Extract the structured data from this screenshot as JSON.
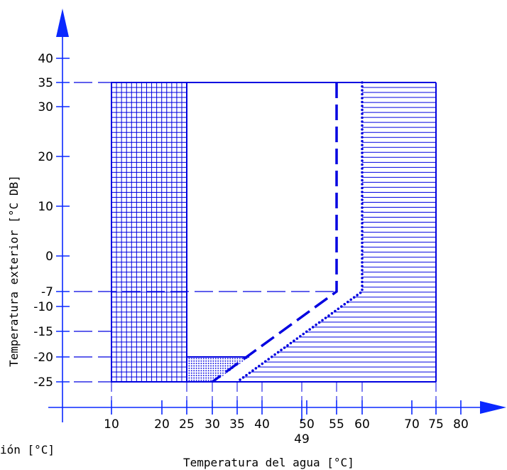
{
  "chart_data": {
    "type": "area",
    "title": "",
    "xlabel": "Temperatura del agua [°C]",
    "ylabel": "Temperatura exterior [°C DB]",
    "cut_off_label": "ión [°C]",
    "x_ticks": [
      {
        "value": 10,
        "label": "10"
      },
      {
        "value": 20,
        "label": "20"
      },
      {
        "value": 25,
        "label": "25"
      },
      {
        "value": 30,
        "label": "30"
      },
      {
        "value": 35,
        "label": "35"
      },
      {
        "value": 40,
        "label": "40"
      },
      {
        "value": 50,
        "label": "50"
      },
      {
        "value": 55,
        "label": "55"
      },
      {
        "value": 60,
        "label": "60"
      },
      {
        "value": 70,
        "label": "70"
      },
      {
        "value": 75,
        "label": "75"
      },
      {
        "value": 80,
        "label": "80"
      }
    ],
    "x_extra_tick": {
      "value": 49,
      "label": "49"
    },
    "y_ticks": [
      {
        "value": 40,
        "label": "40"
      },
      {
        "value": 35,
        "label": "35"
      },
      {
        "value": 30,
        "label": "30"
      },
      {
        "value": 20,
        "label": "20"
      },
      {
        "value": 10,
        "label": "10"
      },
      {
        "value": 0,
        "label": "0"
      },
      {
        "value": -7,
        "label": "-7"
      },
      {
        "value": -10,
        "label": "-10"
      },
      {
        "value": -15,
        "label": "-15"
      },
      {
        "value": -20,
        "label": "-20"
      },
      {
        "value": -25,
        "label": "-25"
      }
    ],
    "regions": [
      {
        "id": "grid-region",
        "pattern": "grid",
        "x": [
          10,
          25
        ],
        "y": [
          -25,
          35
        ]
      },
      {
        "id": "horizontal-region",
        "pattern": "horizontal",
        "polygon": [
          [
            60,
            35
          ],
          [
            75,
            35
          ],
          [
            75,
            -25
          ],
          [
            35,
            -25
          ],
          [
            60,
            -7
          ]
        ]
      },
      {
        "id": "dotted-region",
        "pattern": "dots",
        "polygon": [
          [
            25,
            -20
          ],
          [
            37.5,
            -20
          ],
          [
            30.5,
            -25
          ],
          [
            25,
            -25
          ]
        ]
      }
    ],
    "boundaries": [
      {
        "id": "heating-limit-dashed",
        "style": "dashed",
        "points": [
          [
            55,
            35
          ],
          [
            55,
            -7
          ],
          [
            30,
            -25
          ]
        ]
      },
      {
        "id": "heating-limit-dotted",
        "style": "dotted",
        "points": [
          [
            60,
            35
          ],
          [
            60,
            -7
          ],
          [
            35,
            -25
          ]
        ]
      },
      {
        "id": "outline-top",
        "style": "solid",
        "points": [
          [
            10,
            35
          ],
          [
            75,
            35
          ]
        ]
      }
    ],
    "guide_lines_y": [
      35,
      -7,
      -15,
      -20,
      -25
    ],
    "colors": {
      "line": "#0000e0",
      "text": "#000000",
      "axis_arrow": "#0a28ff"
    }
  }
}
